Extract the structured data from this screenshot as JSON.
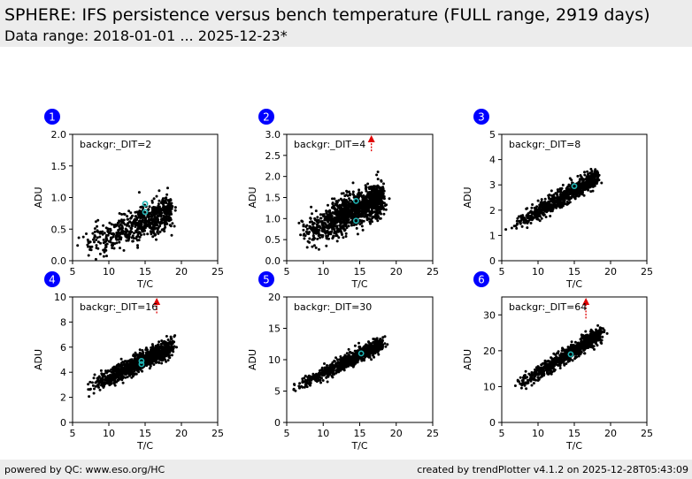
{
  "header": {
    "title": "SPHERE: IFS persistence versus bench temperature (FULL range, 2919 days)",
    "subtitle": "Data range: 2018-01-01 ... 2025-12-23*"
  },
  "footer": {
    "left": "powered by QC: www.eso.org/HC",
    "right": "created by trendPlotter v4.1.2 on 2025-12-28T05:43:09"
  },
  "colors": {
    "points": "#000000",
    "highlight": "#1fb5b5",
    "arrow": "#e00000",
    "badge": "#0000ff",
    "header_bg": "#ececec"
  },
  "chart_data": [
    {
      "type": "scatter",
      "badge": "1",
      "label": "backgr:_DIT=2",
      "xlabel": "T/C",
      "ylabel": "ADU",
      "xlim": [
        5,
        25
      ],
      "ylim": [
        0,
        2.0
      ],
      "xticks": [
        5,
        10,
        15,
        20,
        25
      ],
      "ytick_labels": [
        "0.0",
        "0.5",
        "1.0",
        "1.5",
        "2.0"
      ],
      "yticks": [
        0,
        0.5,
        1.0,
        1.5,
        2.0
      ],
      "trend": {
        "x0": 6.0,
        "y0": 0.22,
        "x1": 18.5,
        "y1": 0.78,
        "ynoise": 0.13,
        "n": 650
      },
      "highlight": [
        [
          15.0,
          0.9
        ],
        [
          15.0,
          0.77
        ]
      ],
      "arrow": null
    },
    {
      "type": "scatter",
      "badge": "2",
      "label": "backgr:_DIT=4",
      "xlabel": "T/C",
      "ylabel": "ADU",
      "xlim": [
        5,
        25
      ],
      "ylim": [
        0,
        3.0
      ],
      "xticks": [
        5,
        10,
        15,
        20,
        25
      ],
      "ytick_labels": [
        "0.0",
        "0.5",
        "1.0",
        "1.5",
        "2.0",
        "2.5",
        "3.0"
      ],
      "yticks": [
        0,
        0.5,
        1.0,
        1.5,
        2.0,
        2.5,
        3.0
      ],
      "trend": {
        "x0": 7.0,
        "y0": 0.6,
        "x1": 18.0,
        "y1": 1.5,
        "ynoise": 0.2,
        "n": 1300
      },
      "highlight": [
        [
          14.5,
          1.42
        ],
        [
          14.5,
          0.95
        ]
      ],
      "arrow": {
        "x": 16.6,
        "y": 2.6
      }
    },
    {
      "type": "scatter",
      "badge": "3",
      "label": "backgr:_DIT=8",
      "xlabel": "T/C",
      "ylabel": "ADU",
      "xlim": [
        5,
        25
      ],
      "ylim": [
        0,
        5
      ],
      "xticks": [
        5,
        10,
        15,
        20,
        25
      ],
      "ytick_labels": [
        "0",
        "1",
        "2",
        "3",
        "4",
        "5"
      ],
      "yticks": [
        0,
        1,
        2,
        3,
        4,
        5
      ],
      "trend": {
        "x0": 6.5,
        "y0": 1.35,
        "x1": 18.0,
        "y1": 3.3,
        "ynoise": 0.17,
        "n": 750
      },
      "highlight": [
        [
          15.0,
          2.95
        ]
      ],
      "arrow": null
    },
    {
      "type": "scatter",
      "badge": "4",
      "label": "backgr:_DIT=16",
      "xlabel": "T/C",
      "ylabel": "ADU",
      "xlim": [
        5,
        25
      ],
      "ylim": [
        0,
        10
      ],
      "xticks": [
        5,
        10,
        15,
        20,
        25
      ],
      "ytick_labels": [
        "0",
        "2",
        "4",
        "6",
        "8",
        "10"
      ],
      "yticks": [
        0,
        2,
        4,
        6,
        8,
        10
      ],
      "trend": {
        "x0": 7.0,
        "y0": 2.7,
        "x1": 18.5,
        "y1": 6.0,
        "ynoise": 0.35,
        "n": 1100
      },
      "highlight": [
        [
          14.5,
          4.9
        ],
        [
          14.5,
          4.65
        ]
      ],
      "arrow": {
        "x": 16.6,
        "y": 8.7
      }
    },
    {
      "type": "scatter",
      "badge": "5",
      "label": "backgr:_DIT=30",
      "xlabel": "T/C",
      "ylabel": "ADU",
      "xlim": [
        5,
        25
      ],
      "ylim": [
        0,
        20
      ],
      "xticks": [
        5,
        10,
        15,
        20,
        25
      ],
      "ytick_labels": [
        "0",
        "5",
        "10",
        "15",
        "20"
      ],
      "yticks": [
        0,
        5,
        10,
        15,
        20
      ],
      "trend": {
        "x0": 6.0,
        "y0": 5.5,
        "x1": 18.0,
        "y1": 12.5,
        "ynoise": 0.55,
        "n": 800
      },
      "highlight": [
        [
          15.2,
          11.0
        ]
      ],
      "arrow": null
    },
    {
      "type": "scatter",
      "badge": "6",
      "label": "backgr:_DIT=64",
      "xlabel": "T/C",
      "ylabel": "ADU",
      "xlim": [
        5,
        25
      ],
      "ylim": [
        0,
        35
      ],
      "xticks": [
        5,
        10,
        15,
        20,
        25
      ],
      "ytick_labels": [
        "0",
        "10",
        "20",
        "30"
      ],
      "yticks": [
        0,
        10,
        20,
        30
      ],
      "trend": {
        "x0": 7.0,
        "y0": 10.0,
        "x1": 18.5,
        "y1": 24.5,
        "ynoise": 1.1,
        "n": 800
      },
      "highlight": [
        [
          14.5,
          19.0
        ]
      ],
      "arrow": {
        "x": 16.6,
        "y": 29.0
      }
    }
  ]
}
